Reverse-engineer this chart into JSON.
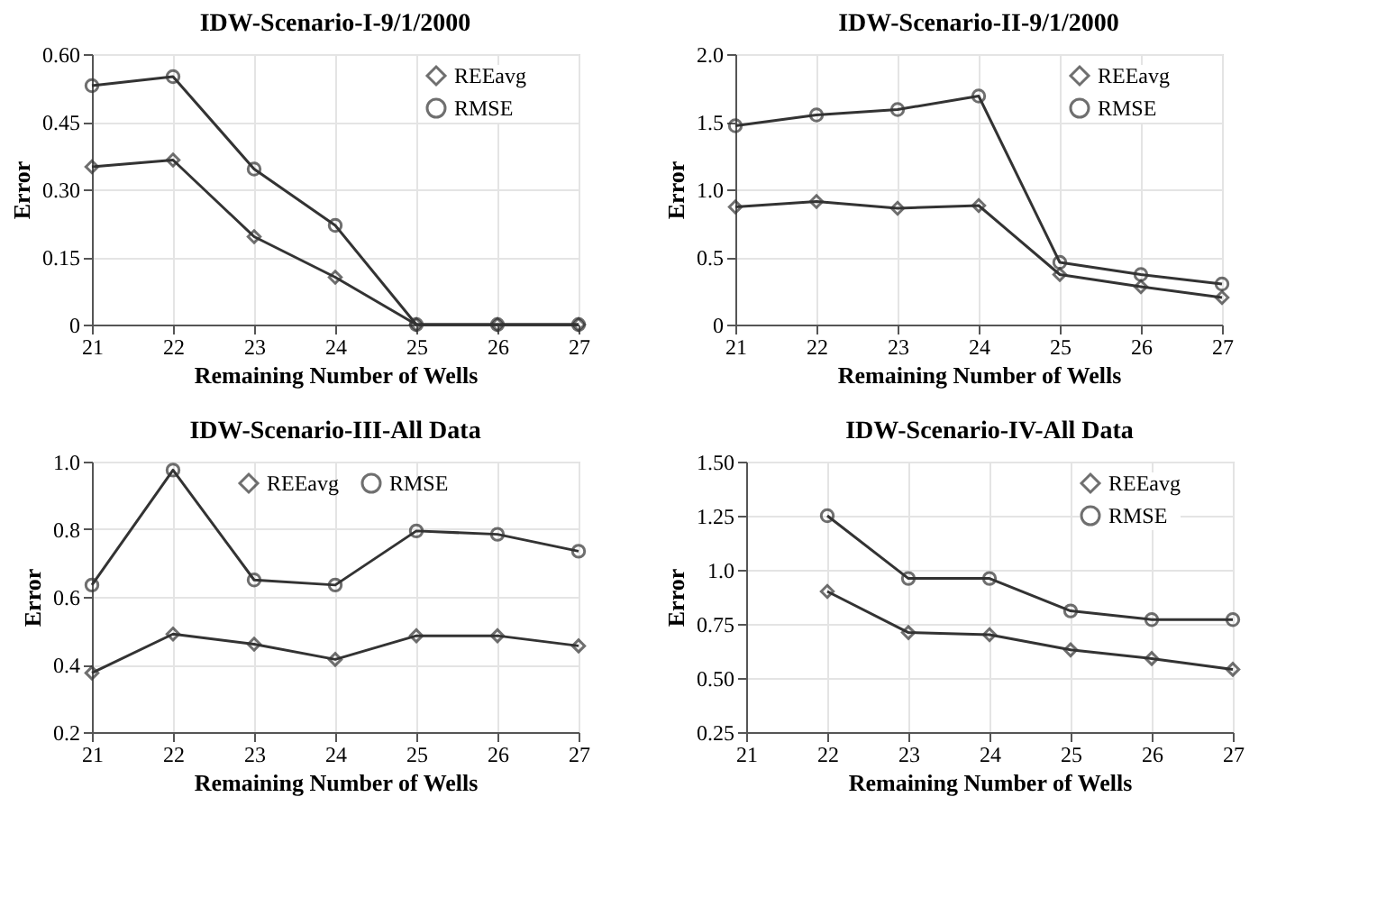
{
  "chart_data": [
    {
      "type": "line",
      "title": "IDW-Scenario-I-9/1/2000",
      "xlabel": "Remaining Number of  Wells",
      "ylabel": "Error",
      "x": [
        21,
        22,
        23,
        24,
        25,
        26,
        27
      ],
      "xlim": [
        21,
        27
      ],
      "xticks": [
        21,
        22,
        23,
        24,
        25,
        26,
        27
      ],
      "ylim": [
        0,
        0.6
      ],
      "yticks": [
        0,
        0.15,
        {
          "value": 0.3,
          "label": "0.30"
        },
        0.45,
        {
          "value": 0.6,
          "label": "0.60"
        }
      ],
      "grid": true,
      "legend": "top right",
      "line_style": "solid",
      "series": [
        {
          "name": "REEavg",
          "color": "#333333",
          "marker": "diamond",
          "values": [
            0.35,
            0.365,
            0.195,
            0.105,
            0,
            0,
            0
          ]
        },
        {
          "name": "RMSE",
          "color": "#333333",
          "marker": "circle",
          "values": [
            0.53,
            0.55,
            0.345,
            0.22,
            0,
            0,
            0
          ]
        }
      ]
    },
    {
      "type": "line",
      "title": "IDW-Scenario-II-9/1/2000",
      "xlabel": "Remaining Number of  Wells",
      "ylabel": "Error",
      "x": [
        21,
        22,
        23,
        24,
        25,
        26,
        27
      ],
      "xlim": [
        21,
        27
      ],
      "xticks": [
        21,
        22,
        23,
        24,
        25,
        26,
        27
      ],
      "ylim": [
        0,
        2
      ],
      "yticks": [
        0,
        0.5,
        {
          "value": 1,
          "label": "1.0"
        },
        1.5,
        {
          "value": 2,
          "label": "2.0"
        }
      ],
      "grid": true,
      "legend": "top right",
      "line_style": "solid",
      "series": [
        {
          "name": "REEavg",
          "color": "#333333",
          "marker": "diamond",
          "values": [
            0.87,
            0.91,
            0.86,
            0.88,
            0.37,
            0.28,
            0.2
          ]
        },
        {
          "name": "RMSE",
          "color": "#333333",
          "marker": "circle",
          "values": [
            1.47,
            1.55,
            1.59,
            1.69,
            0.46,
            0.37,
            0.3
          ]
        }
      ]
    },
    {
      "type": "line",
      "title": "IDW-Scenario-III-All Data",
      "xlabel": "Remaining Number of  Wells",
      "ylabel": "Error",
      "x": [
        21,
        22,
        23,
        24,
        25,
        26,
        27
      ],
      "xlim": [
        21,
        27
      ],
      "xticks": [
        21,
        22,
        23,
        24,
        25,
        26,
        27
      ],
      "ylim": [
        0.2,
        1
      ],
      "yticks": [
        0.2,
        0.4,
        0.6,
        0.8,
        {
          "value": 1,
          "label": "1.0"
        }
      ],
      "grid": true,
      "legend": "top",
      "line_style": "solid",
      "series": [
        {
          "name": "REEavg",
          "color": "#333333",
          "marker": "diamond",
          "values": [
            0.375,
            0.49,
            0.46,
            0.415,
            0.485,
            0.485,
            0.455
          ]
        },
        {
          "name": "RMSE",
          "color": "#333333",
          "marker": "circle",
          "values": [
            0.635,
            0.975,
            0.65,
            0.635,
            0.795,
            0.785,
            0.735
          ]
        }
      ]
    },
    {
      "type": "line",
      "title": "IDW-Scenario-IV-All Data",
      "xlabel": "Remaining Number of  Wells",
      "ylabel": "Error",
      "x": [
        22,
        23,
        24,
        25,
        26,
        27
      ],
      "xlim": [
        21,
        27
      ],
      "xticks": [
        21,
        22,
        23,
        24,
        25,
        26,
        27
      ],
      "ylim": [
        0.25,
        1.5
      ],
      "yticks": [
        0.25,
        {
          "value": 0.5,
          "label": "0.50"
        },
        0.75,
        {
          "value": 1,
          "label": "1.0"
        },
        1.25,
        {
          "value": 1.5,
          "label": "1.50"
        }
      ],
      "grid": true,
      "legend": "top right",
      "line_style": "solid",
      "series": [
        {
          "name": "REEavg",
          "color": "#333333",
          "marker": "diamond",
          "values": [
            0.9,
            0.71,
            0.7,
            0.63,
            0.59,
            0.54
          ]
        },
        {
          "name": "RMSE",
          "color": "#333333",
          "marker": "circle",
          "values": [
            1.25,
            0.96,
            0.96,
            0.81,
            0.77,
            0.77
          ]
        }
      ]
    }
  ]
}
